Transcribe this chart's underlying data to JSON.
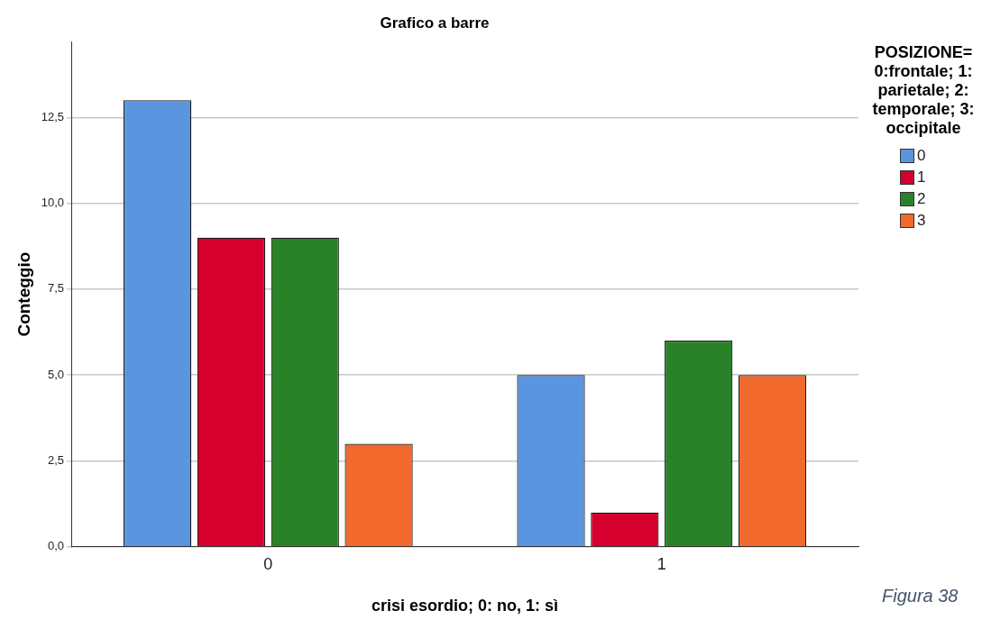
{
  "chart_data": {
    "type": "bar",
    "title": "Grafico a barre",
    "xlabel": "crisi esordio; 0: no, 1: sì",
    "ylabel": "Conteggio",
    "legend_title": "POSIZIONE= 0:frontale; 1: parietale; 2: temporale; 3: occipitale",
    "categories": [
      "0",
      "1"
    ],
    "series": [
      {
        "name": "0",
        "color": "#5a96e0",
        "values": [
          13,
          5
        ]
      },
      {
        "name": "1",
        "color": "#d6002f",
        "values": [
          9,
          1
        ]
      },
      {
        "name": "2",
        "color": "#2a8228",
        "values": [
          9,
          6
        ]
      },
      {
        "name": "3",
        "color": "#f1692c",
        "values": [
          3,
          5
        ]
      }
    ],
    "ylim": [
      0,
      14.7
    ],
    "yticks": [
      {
        "value": 0,
        "label": "0,0"
      },
      {
        "value": 2.5,
        "label": "2,5"
      },
      {
        "value": 5,
        "label": "5,0"
      },
      {
        "value": 7.5,
        "label": "7,5"
      },
      {
        "value": 10,
        "label": "10,0"
      },
      {
        "value": 12.5,
        "label": "12,5"
      }
    ],
    "grid": "y",
    "legend": "top right",
    "annotations": [
      "Figura 38"
    ]
  }
}
